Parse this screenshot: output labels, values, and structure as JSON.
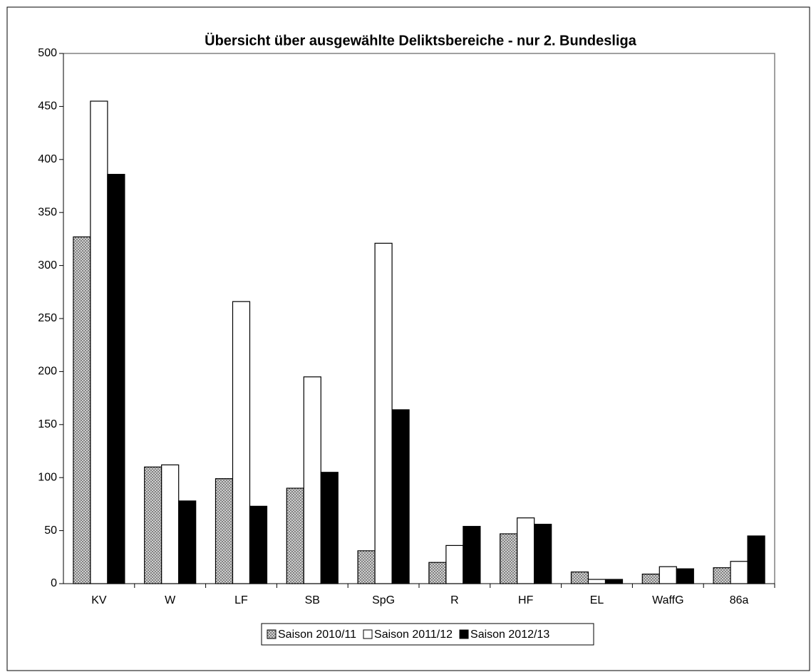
{
  "chart_data": {
    "type": "bar",
    "title": "Übersicht über ausgewählte Deliktsbereiche - nur 2. Bundesliga",
    "categories": [
      "KV",
      "W",
      "LF",
      "SB",
      "SpG",
      "R",
      "HF",
      "EL",
      "WaffG",
      "86a"
    ],
    "series": [
      {
        "name": "Saison 2010/11",
        "color": "#808080",
        "pattern": "crosshatch",
        "values": [
          327,
          110,
          99,
          90,
          31,
          20,
          47,
          11,
          9,
          15
        ]
      },
      {
        "name": "Saison 2011/12",
        "color": "#ffffff",
        "values": [
          455,
          112,
          266,
          195,
          321,
          36,
          62,
          4,
          16,
          21
        ]
      },
      {
        "name": "Saison 2012/13",
        "color": "#000000",
        "values": [
          386,
          78,
          73,
          105,
          164,
          54,
          56,
          4,
          14,
          45
        ]
      }
    ],
    "ylim": [
      0,
      500
    ],
    "yticks": [
      0,
      50,
      100,
      150,
      200,
      250,
      300,
      350,
      400,
      450,
      500
    ],
    "grid": false,
    "legend": "bottom"
  }
}
